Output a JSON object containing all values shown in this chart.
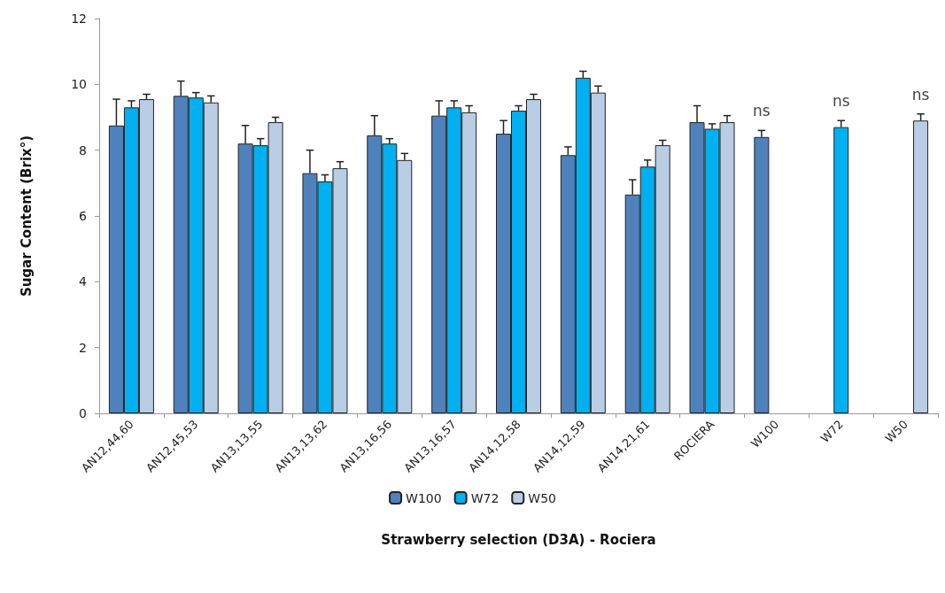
{
  "chart_data": {
    "type": "bar",
    "xlabel": "Strawberry selection (D3A) - Rociera",
    "ylabel": "Sugar Content (Brix°)",
    "categories": [
      "AN12,44,60",
      "AN12,45,53",
      "AN13,13,55",
      "AN13,13,62",
      "AN13,16,56",
      "AN13,16,57",
      "AN14,12,58",
      "AN14,12,59",
      "AN14,21,61",
      "ROCIERA",
      "W100",
      "W72",
      "W50"
    ],
    "series": [
      {
        "name": "W100",
        "color": "#4f81bd",
        "values": [
          8.75,
          9.65,
          8.2,
          7.3,
          8.45,
          9.05,
          8.5,
          7.85,
          6.65,
          8.85,
          8.4,
          null,
          null
        ],
        "errors": [
          0.8,
          0.45,
          0.55,
          0.7,
          0.6,
          0.45,
          0.4,
          0.25,
          0.45,
          0.5,
          0.2,
          null,
          null
        ]
      },
      {
        "name": "W72",
        "color": "#00b0f0",
        "values": [
          9.3,
          9.6,
          8.15,
          7.05,
          8.2,
          9.3,
          9.2,
          10.2,
          7.5,
          8.65,
          null,
          8.7,
          null
        ],
        "errors": [
          0.2,
          0.15,
          0.2,
          0.2,
          0.15,
          0.2,
          0.15,
          0.2,
          0.2,
          0.15,
          null,
          0.2,
          null
        ]
      },
      {
        "name": "W50",
        "color": "#b9cde5",
        "values": [
          9.55,
          9.45,
          8.85,
          7.45,
          7.7,
          9.15,
          9.55,
          9.75,
          8.15,
          8.85,
          null,
          null,
          8.9
        ],
        "errors": [
          0.15,
          0.2,
          0.15,
          0.2,
          0.2,
          0.2,
          0.15,
          0.2,
          0.15,
          0.2,
          null,
          null,
          0.2
        ]
      }
    ],
    "annotations": [
      "ns",
      "ns",
      "ns"
    ],
    "ylim": [
      0,
      12
    ],
    "yticks": [
      0,
      2,
      4,
      6,
      8,
      10,
      12
    ],
    "grid": false,
    "legend": "bottom"
  }
}
